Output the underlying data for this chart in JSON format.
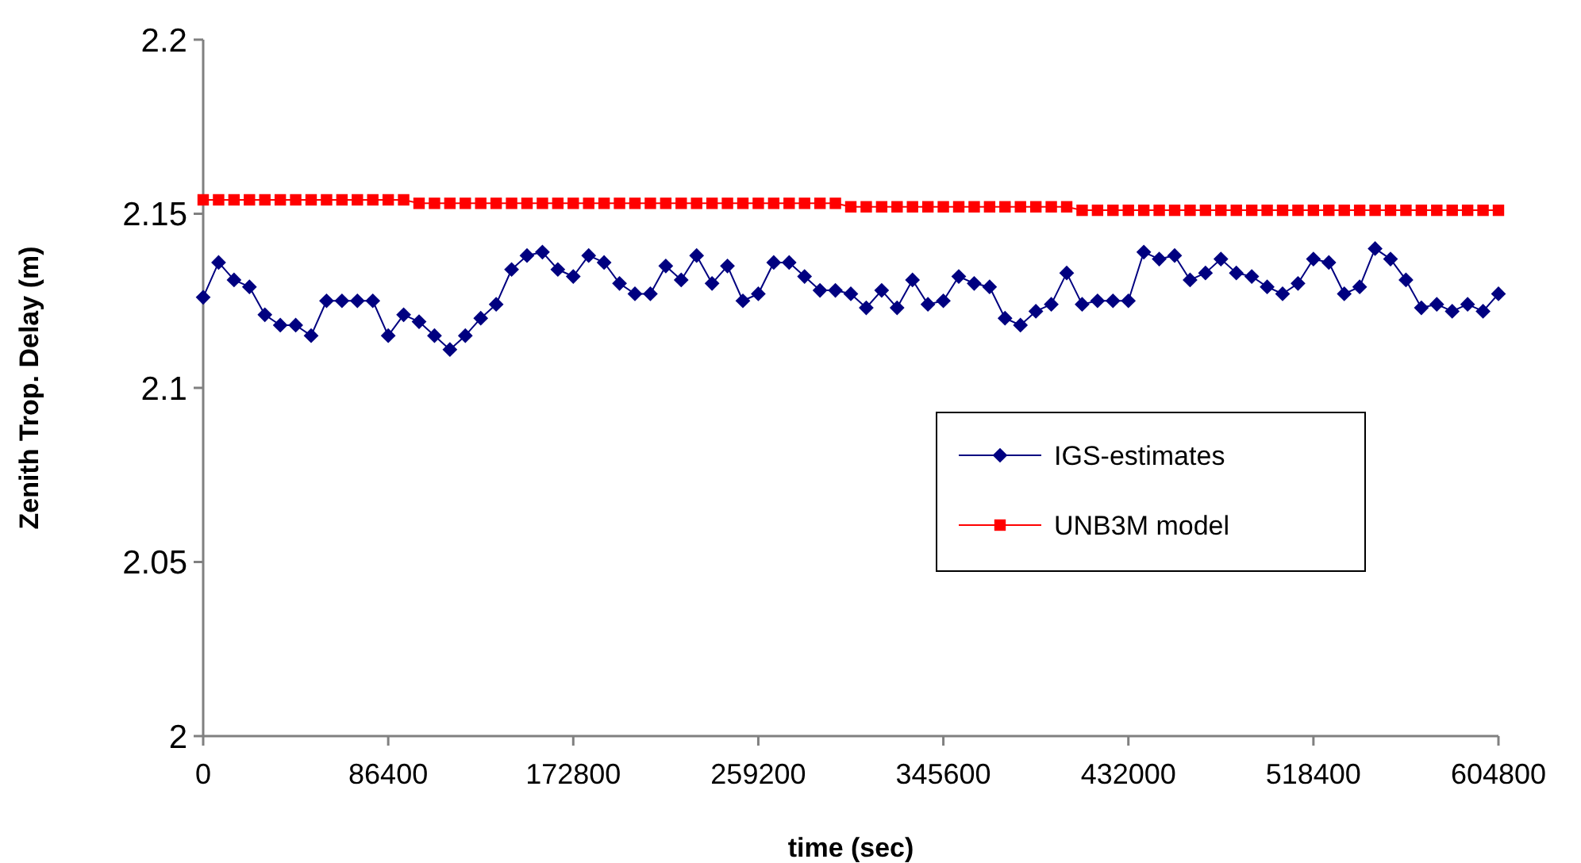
{
  "chart_data": {
    "type": "line",
    "xlabel": "time (sec)",
    "ylabel": "Zenith Trop. Delay (m)",
    "x": [
      0,
      7200,
      14400,
      21600,
      28800,
      36000,
      43200,
      50400,
      57600,
      64800,
      72000,
      79200,
      86400,
      93600,
      100800,
      108000,
      115200,
      122400,
      129600,
      136800,
      144000,
      151200,
      158400,
      165600,
      172800,
      180000,
      187200,
      194400,
      201600,
      208800,
      216000,
      223200,
      230400,
      237600,
      244800,
      252000,
      259200,
      266400,
      273600,
      280800,
      288000,
      295200,
      302400,
      309600,
      316800,
      324000,
      331200,
      338400,
      345600,
      352800,
      360000,
      367200,
      374400,
      381600,
      388800,
      396000,
      403200,
      410400,
      417600,
      424800,
      432000,
      439200,
      446400,
      453600,
      460800,
      468000,
      475200,
      482400,
      489600,
      496800,
      504000,
      511200,
      518400,
      525600,
      532800,
      540000,
      547200,
      554400,
      561600,
      568800,
      576000,
      583200,
      590400,
      597600,
      604800
    ],
    "series": [
      {
        "name": "IGS-estimates",
        "color": "#000080",
        "marker": "diamond",
        "values": [
          2.126,
          2.136,
          2.131,
          2.129,
          2.121,
          2.118,
          2.118,
          2.115,
          2.125,
          2.125,
          2.125,
          2.125,
          2.115,
          2.121,
          2.119,
          2.115,
          2.111,
          2.115,
          2.12,
          2.124,
          2.134,
          2.138,
          2.139,
          2.134,
          2.132,
          2.138,
          2.136,
          2.13,
          2.127,
          2.127,
          2.135,
          2.131,
          2.138,
          2.13,
          2.135,
          2.125,
          2.127,
          2.136,
          2.136,
          2.132,
          2.128,
          2.128,
          2.127,
          2.123,
          2.128,
          2.123,
          2.131,
          2.124,
          2.125,
          2.132,
          2.13,
          2.129,
          2.12,
          2.118,
          2.122,
          2.124,
          2.133,
          2.124,
          2.125,
          2.125,
          2.125,
          2.139,
          2.137,
          2.138,
          2.131,
          2.133,
          2.137,
          2.133,
          2.132,
          2.129,
          2.127,
          2.13,
          2.137,
          2.136,
          2.127,
          2.129,
          2.14,
          2.137,
          2.131,
          2.123,
          2.124,
          2.122,
          2.124,
          2.122,
          2.127
        ]
      },
      {
        "name": "UNB3M model",
        "color": "#ff0000",
        "marker": "square",
        "values": [
          2.154,
          2.154,
          2.154,
          2.154,
          2.154,
          2.154,
          2.154,
          2.154,
          2.154,
          2.154,
          2.154,
          2.154,
          2.154,
          2.154,
          2.153,
          2.153,
          2.153,
          2.153,
          2.153,
          2.153,
          2.153,
          2.153,
          2.153,
          2.153,
          2.153,
          2.153,
          2.153,
          2.153,
          2.153,
          2.153,
          2.153,
          2.153,
          2.153,
          2.153,
          2.153,
          2.153,
          2.153,
          2.153,
          2.153,
          2.153,
          2.153,
          2.153,
          2.152,
          2.152,
          2.152,
          2.152,
          2.152,
          2.152,
          2.152,
          2.152,
          2.152,
          2.152,
          2.152,
          2.152,
          2.152,
          2.152,
          2.152,
          2.151,
          2.151,
          2.151,
          2.151,
          2.151,
          2.151,
          2.151,
          2.151,
          2.151,
          2.151,
          2.151,
          2.151,
          2.151,
          2.151,
          2.151,
          2.151,
          2.151,
          2.151,
          2.151,
          2.151,
          2.151,
          2.151,
          2.151,
          2.151,
          2.151,
          2.151,
          2.151,
          2.151
        ]
      }
    ],
    "xlim": [
      0,
      604800
    ],
    "xticks": [
      0,
      86400,
      172800,
      259200,
      345600,
      432000,
      518400,
      604800
    ],
    "ylim": [
      2,
      2.2
    ],
    "yticks": [
      2,
      2.05,
      2.1,
      2.15,
      2.2
    ],
    "grid": false,
    "legend": "right",
    "line_style": "solid"
  }
}
